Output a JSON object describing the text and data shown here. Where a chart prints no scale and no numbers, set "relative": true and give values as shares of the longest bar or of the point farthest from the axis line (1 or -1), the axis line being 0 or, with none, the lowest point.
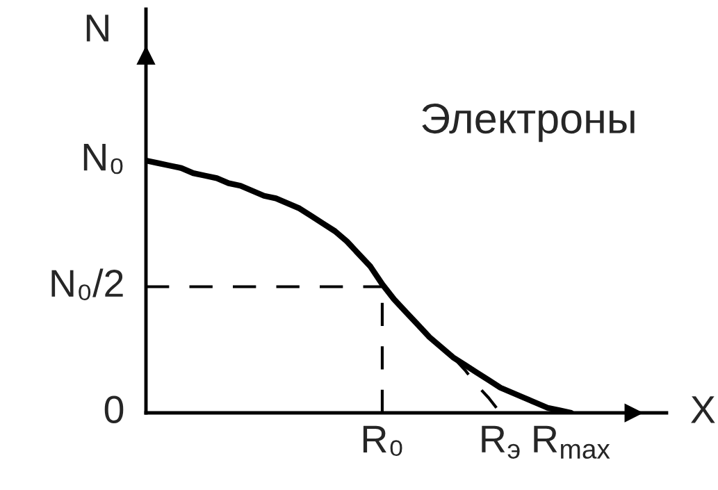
{
  "chart_data": {
    "type": "line",
    "relative": true,
    "xlabel": "X",
    "ylabel": "N",
    "categories": [
      null,
      null,
      null,
      null,
      null,
      null,
      null,
      null,
      null,
      null,
      null,
      null,
      null,
      null,
      null,
      null,
      null,
      null,
      null,
      null,
      "R₀",
      null,
      null,
      null,
      null,
      null,
      null,
      null,
      null,
      null,
      "R$_{э}$",
      null,
      null,
      null,
      null,
      null,
      "R$_{max}$"
    ],
    "annotations": [
      "Электроны",
      "N₀",
      "0"
    ],
    "series": [
      {
        "color": "#000000",
        "line_style": "solid",
        "values": [
          1.0,
          0.99,
          0.98,
          0.97,
          0.95,
          0.94,
          0.93,
          0.91,
          0.9,
          0.88,
          0.86,
          0.85,
          0.83,
          0.81,
          0.78,
          0.75,
          0.72,
          0.68,
          0.63,
          0.58,
          0.51,
          0.45,
          0.4,
          0.35,
          0.3,
          0.26,
          0.22,
          0.19,
          0.16,
          0.13,
          0.1,
          0.08,
          0.06,
          0.04,
          0.02,
          0.01,
          0
        ]
      },
      {
        "color": "#000000",
        "line_style": "dashed",
        "values": [
          null,
          null,
          null,
          null,
          null,
          null,
          null,
          null,
          null,
          null,
          null,
          null,
          null,
          null,
          null,
          null,
          null,
          null,
          null,
          null,
          null,
          null,
          null,
          null,
          null,
          null,
          0.22,
          0.17,
          0.11,
          0.06,
          0,
          null,
          null,
          null,
          null,
          null,
          null
        ]
      }
    ],
    "ref_lines": [
      {
        "axis": "y",
        "value": 0.5,
        "label": "N₀/2",
        "color": "#000000",
        "line_style": "dashed"
      },
      {
        "axis": "x",
        "value": "R₀",
        "color": "#000000",
        "line_style": "dashed"
      }
    ]
  }
}
